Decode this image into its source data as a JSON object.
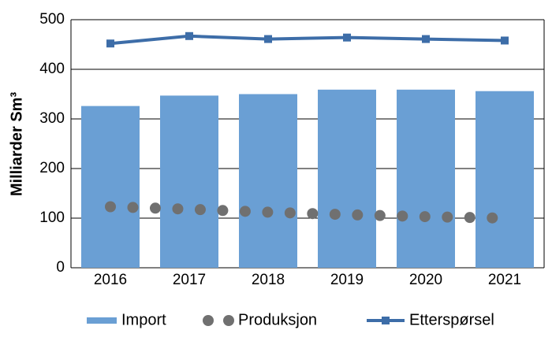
{
  "chart_data": {
    "type": "bar_line",
    "y_label": "Milliarder Sm³",
    "categories": [
      "2016",
      "2017",
      "2018",
      "2019",
      "2020",
      "2021"
    ],
    "series": [
      {
        "name": "Import",
        "type": "bar",
        "color": "#6a9fd4",
        "values": [
          326,
          347,
          350,
          359,
          359,
          356
        ]
      },
      {
        "name": "Produksjon",
        "type": "dotted",
        "color": "#707070",
        "values": [
          123,
          118,
          112,
          107,
          103,
          100
        ]
      },
      {
        "name": "Etterspørsel",
        "type": "line",
        "color": "#3d6da8",
        "values": [
          452,
          467,
          461,
          464,
          461,
          458
        ]
      }
    ],
    "ylim": [
      0,
      500
    ],
    "yticks": [
      0,
      100,
      200,
      300,
      400,
      500
    ],
    "grid": true,
    "legend": "bottom"
  }
}
